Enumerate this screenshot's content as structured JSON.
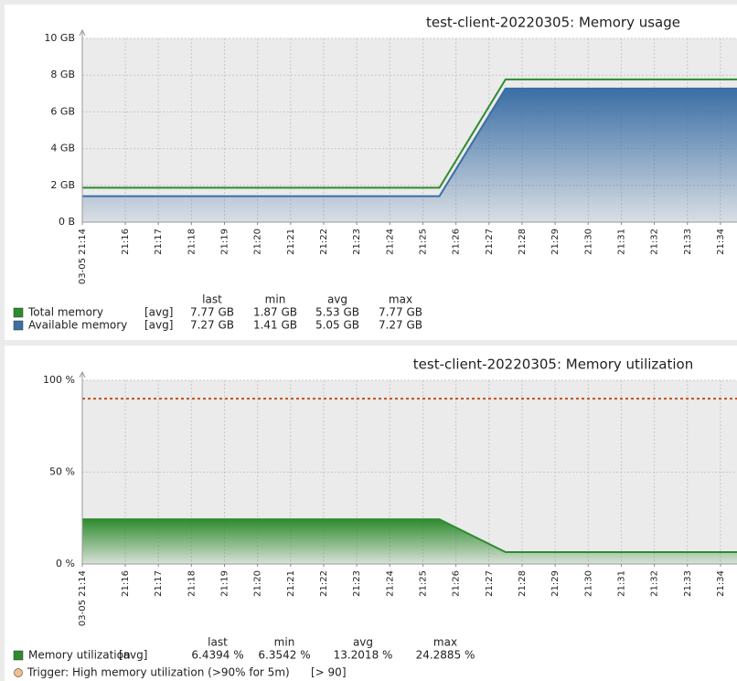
{
  "chart_data": [
    {
      "type": "area",
      "title": "test-client-20220305: Memory usage",
      "x": [
        1274.7,
        1285.5,
        1287.5,
        1294.5
      ],
      "xlim": [
        1274.7,
        1294.5
      ],
      "xticks": [
        {
          "value": 1274.7,
          "label": "03-05 21:14"
        },
        {
          "value": 1276,
          "label": "21:16"
        },
        {
          "value": 1277,
          "label": "21:17"
        },
        {
          "value": 1278,
          "label": "21:18"
        },
        {
          "value": 1279,
          "label": "21:19"
        },
        {
          "value": 1280,
          "label": "21:20"
        },
        {
          "value": 1281,
          "label": "21:21"
        },
        {
          "value": 1282,
          "label": "21:22"
        },
        {
          "value": 1283,
          "label": "21:23"
        },
        {
          "value": 1284,
          "label": "21:24"
        },
        {
          "value": 1285,
          "label": "21:25"
        },
        {
          "value": 1286,
          "label": "21:26"
        },
        {
          "value": 1287,
          "label": "21:27"
        },
        {
          "value": 1288,
          "label": "21:28"
        },
        {
          "value": 1289,
          "label": "21:29"
        },
        {
          "value": 1290,
          "label": "21:30"
        },
        {
          "value": 1291,
          "label": "21:31"
        },
        {
          "value": 1292,
          "label": "21:32"
        },
        {
          "value": 1293,
          "label": "21:33"
        },
        {
          "value": 1294,
          "label": "21:34"
        }
      ],
      "first_xtick_color": "#cc0000",
      "ylim": [
        0,
        10
      ],
      "yticks": [
        {
          "value": 0,
          "label": "0 B"
        },
        {
          "value": 2,
          "label": "2 GB"
        },
        {
          "value": 4,
          "label": "4 GB"
        },
        {
          "value": 6,
          "label": "6 GB"
        },
        {
          "value": 8,
          "label": "8 GB"
        },
        {
          "value": 10,
          "label": "10 GB"
        }
      ],
      "grid": true,
      "legend_headers": [
        "last",
        "min",
        "avg",
        "max"
      ],
      "series": [
        {
          "name": "Total memory",
          "color": "#2e8b2e",
          "fill": false,
          "func": "[avg]",
          "stats": [
            "7.77 GB",
            "1.87 GB",
            "5.53 GB",
            "7.77 GB"
          ],
          "values": [
            1.87,
            1.87,
            7.77,
            7.77
          ]
        },
        {
          "name": "Available memory",
          "color": "#3a6ea5",
          "fill": true,
          "func": "[avg]",
          "stats": [
            "7.27 GB",
            "1.41 GB",
            "5.05 GB",
            "7.27 GB"
          ],
          "values": [
            1.41,
            1.41,
            7.27,
            7.27
          ]
        }
      ]
    },
    {
      "type": "area",
      "title": "test-client-20220305: Memory utilization",
      "x": [
        1274.7,
        1285.5,
        1287.5,
        1294.5
      ],
      "xlim": [
        1274.7,
        1294.5
      ],
      "xticks": [
        {
          "value": 1274.7,
          "label": "03-05 21:14"
        },
        {
          "value": 1276,
          "label": "21:16"
        },
        {
          "value": 1277,
          "label": "21:17"
        },
        {
          "value": 1278,
          "label": "21:18"
        },
        {
          "value": 1279,
          "label": "21:19"
        },
        {
          "value": 1280,
          "label": "21:20"
        },
        {
          "value": 1281,
          "label": "21:21"
        },
        {
          "value": 1282,
          "label": "21:22"
        },
        {
          "value": 1283,
          "label": "21:23"
        },
        {
          "value": 1284,
          "label": "21:24"
        },
        {
          "value": 1285,
          "label": "21:25"
        },
        {
          "value": 1286,
          "label": "21:26"
        },
        {
          "value": 1287,
          "label": "21:27"
        },
        {
          "value": 1288,
          "label": "21:28"
        },
        {
          "value": 1289,
          "label": "21:29"
        },
        {
          "value": 1290,
          "label": "21:30"
        },
        {
          "value": 1291,
          "label": "21:31"
        },
        {
          "value": 1292,
          "label": "21:32"
        },
        {
          "value": 1293,
          "label": "21:33"
        },
        {
          "value": 1294,
          "label": "21:34"
        }
      ],
      "first_xtick_color": "#cc0000",
      "ylim": [
        0,
        100
      ],
      "yticks": [
        {
          "value": 0,
          "label": "0 %"
        },
        {
          "value": 50,
          "label": "50 %"
        },
        {
          "value": 100,
          "label": "100 %"
        }
      ],
      "grid": true,
      "legend_headers": [
        "last",
        "min",
        "avg",
        "max"
      ],
      "series": [
        {
          "name": "Memory utilization",
          "color": "#2e8b2e",
          "fill": true,
          "func": "[avg]",
          "stats": [
            "6.4394 %",
            "6.3542 %",
            "13.2018 %",
            "24.2885 %"
          ],
          "values": [
            24.29,
            24.29,
            6.44,
            6.44
          ]
        }
      ],
      "trigger": {
        "name": "Trigger: High memory utilization (>90% for 5m)",
        "condition": "[> 90]",
        "value": 90,
        "color": "#c0501e"
      }
    }
  ]
}
